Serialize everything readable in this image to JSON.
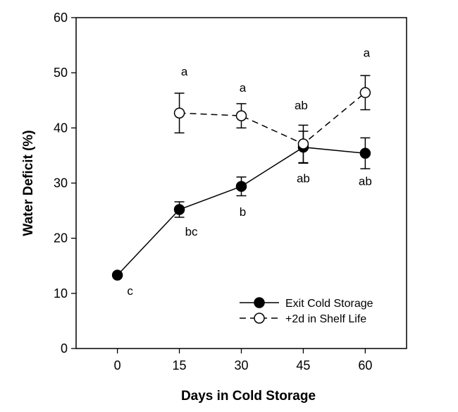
{
  "chart_data": {
    "type": "line",
    "title": "",
    "xlabel": "Days in Cold Storage",
    "ylabel": "Water Deficit (%)",
    "xlim": [
      -10,
      70
    ],
    "ylim": [
      0,
      60
    ],
    "xticks": [
      0,
      15,
      30,
      45,
      60
    ],
    "yticks": [
      0,
      10,
      20,
      30,
      40,
      50,
      60
    ],
    "grid": false,
    "legend_position": "bottom-right",
    "series": [
      {
        "name": "Exit Cold Storage",
        "marker": "filled-circle",
        "line": "solid",
        "x": [
          0,
          15,
          30,
          45,
          60
        ],
        "y": [
          13.3,
          25.2,
          29.4,
          36.5,
          35.4
        ],
        "err": [
          0.3,
          1.4,
          1.7,
          2.9,
          2.8
        ],
        "labels": [
          "c",
          "bc",
          "b",
          "ab",
          "ab"
        ]
      },
      {
        "name": "+2d in Shelf Life",
        "marker": "open-circle",
        "line": "dashed",
        "x": [
          15,
          30,
          45,
          60
        ],
        "y": [
          42.7,
          42.2,
          37.1,
          46.4
        ],
        "err": [
          3.6,
          2.2,
          3.4,
          3.1
        ],
        "labels": [
          "a",
          "a",
          "ab",
          "a"
        ]
      }
    ]
  }
}
